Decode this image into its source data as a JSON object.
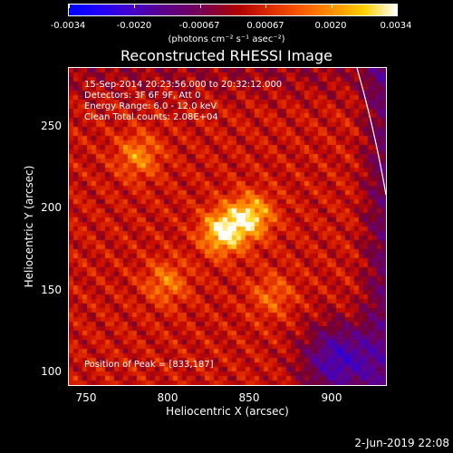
{
  "colorbar": {
    "labels": [
      "-0.0034",
      "-0.0020",
      "-0.00067",
      "0.00067",
      "0.0020",
      "0.0034"
    ],
    "units": "(photons cm⁻² s⁻¹ asec⁻²)"
  },
  "chart_data": {
    "type": "heatmap",
    "title": "Reconstructed RHESSI Image",
    "xlabel": "Heliocentric X (arcsec)",
    "ylabel": "Heliocentric Y (arcsec)",
    "xlim": [
      738,
      933
    ],
    "ylim": [
      93,
      288
    ],
    "xticks": [
      750,
      800,
      850,
      900
    ],
    "yticks": [
      100,
      150,
      200,
      250
    ],
    "zlim": [
      -0.0034,
      0.0034
    ],
    "peak_position": [
      833,
      187
    ],
    "annotations": {
      "time_range": "15-Sep-2014 20:23:56.000 to 20:32:12.000",
      "detectors": "Detectors: 3F 6F 9F, Att 0",
      "energy": "Energy Range: 6.0 - 12.0 keV",
      "method_counts": "Clean     Total counts: 2.08E+04",
      "peak_text": "Position of Peak = [833,187]"
    },
    "sources": [
      {
        "x": 833,
        "y": 187,
        "peak": 1.0
      },
      {
        "x": 850,
        "y": 197,
        "peak": 0.85
      },
      {
        "x": 781,
        "y": 234,
        "peak": 0.55
      },
      {
        "x": 798,
        "y": 156,
        "peak": 0.5
      },
      {
        "x": 863,
        "y": 148,
        "peak": 0.4
      }
    ]
  },
  "footer": {
    "timestamp": "2-Jun-2019 22:08"
  }
}
